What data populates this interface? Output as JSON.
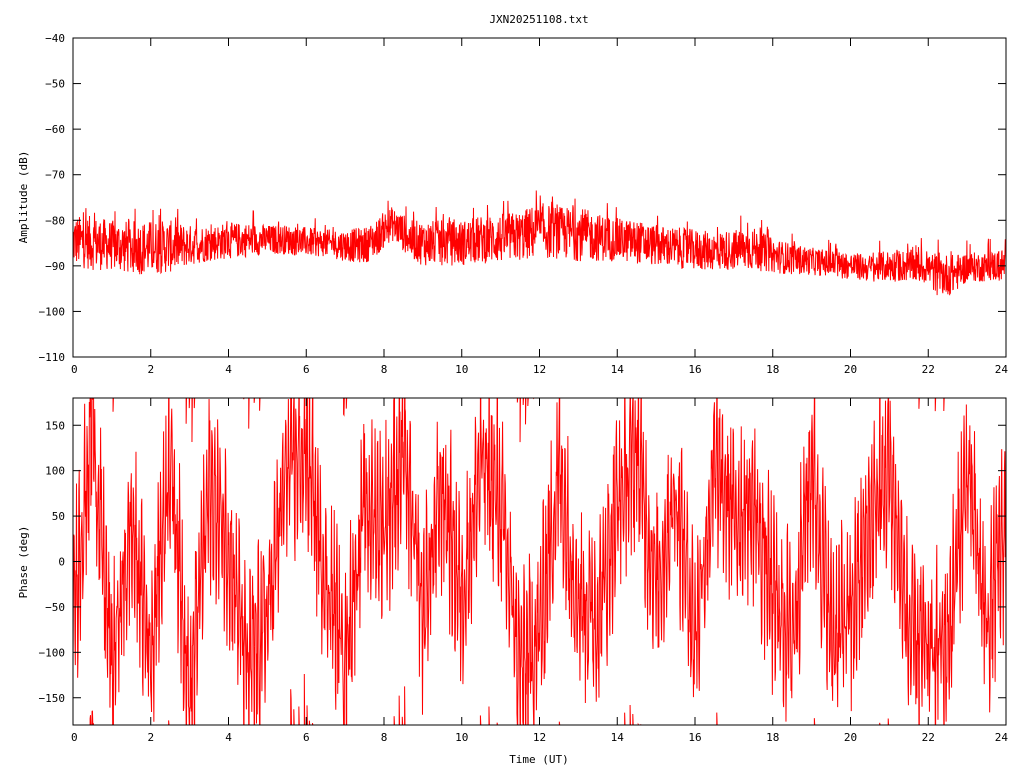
{
  "chart_data": [
    {
      "type": "line",
      "title": "JXN20251108.txt",
      "ylabel": "Amplitude (dB)",
      "xlabel": "",
      "xlim": [
        0,
        24
      ],
      "ylim": [
        -110,
        -40
      ],
      "x_ticks": [
        0,
        2,
        4,
        6,
        8,
        10,
        12,
        14,
        16,
        18,
        20,
        22,
        24
      ],
      "y_ticks": [
        -110,
        -100,
        -90,
        -80,
        -70,
        -60,
        -50,
        -40
      ],
      "grid": false,
      "color": "#ff0000",
      "series": [
        {
          "envelope_x": [
            0,
            0.5,
            1,
            1.5,
            2,
            2.5,
            3,
            3.5,
            4,
            4.5,
            5,
            5.5,
            6,
            6.5,
            7,
            7.5,
            7.8,
            8.0,
            8.2,
            8.4,
            8.7,
            9,
            9.5,
            10,
            10.5,
            11,
            11.5,
            12,
            12.5,
            13,
            13.5,
            14,
            14.5,
            15,
            15.5,
            16,
            16.5,
            17,
            17.5,
            18,
            18.5,
            19,
            19.5,
            20,
            20.5,
            21,
            21.5,
            22,
            22.2,
            22.6,
            23,
            23.5,
            24
          ],
          "envelope_upper": [
            -79,
            -79,
            -80,
            -80,
            -80,
            -80,
            -81,
            -81,
            -80.5,
            -80.5,
            -81,
            -81,
            -81.5,
            -82,
            -82,
            -81.5,
            -80,
            -78,
            -77,
            -78,
            -80,
            -80,
            -80,
            -80,
            -79,
            -78.5,
            -78,
            -76,
            -77,
            -77,
            -78.5,
            -79.5,
            -80,
            -81,
            -81.5,
            -82,
            -82.5,
            -82,
            -81.5,
            -84,
            -85,
            -86,
            -86.5,
            -87,
            -87.5,
            -86.5,
            -86.5,
            -87,
            -87,
            -87.5,
            -87,
            -87,
            -86
          ],
          "envelope_lower": [
            -90,
            -91,
            -91,
            -92,
            -92,
            -91.5,
            -90,
            -89,
            -88.5,
            -88,
            -87.5,
            -87.5,
            -88,
            -88,
            -89,
            -89.5,
            -88,
            -86,
            -84.5,
            -86,
            -88.5,
            -90,
            -90,
            -90,
            -89.5,
            -89.5,
            -89,
            -88.5,
            -88.5,
            -89,
            -89,
            -89,
            -89.5,
            -90,
            -90.5,
            -91,
            -91,
            -91,
            -91,
            -91.5,
            -92,
            -92,
            -92.5,
            -93,
            -93.5,
            -93.5,
            -93.5,
            -94,
            -96.5,
            -96.5,
            -93.5,
            -93.5,
            -93.5
          ]
        }
      ]
    },
    {
      "type": "line",
      "title": "",
      "ylabel": "Phase (deg)",
      "xlabel": "Time (UT)",
      "xlim": [
        0,
        24
      ],
      "ylim": [
        -180,
        180
      ],
      "x_ticks": [
        0,
        2,
        4,
        6,
        8,
        10,
        12,
        14,
        16,
        18,
        20,
        22,
        24
      ],
      "y_ticks": [
        -150,
        -100,
        -50,
        0,
        50,
        100,
        150
      ],
      "grid": false,
      "color": "#ff0000",
      "series": [
        {
          "wraps": true,
          "x": [
            0,
            0.5,
            1,
            1.5,
            2,
            2.5,
            3,
            3.5,
            4,
            4.5,
            5,
            5.5,
            6,
            6.5,
            7,
            7.5,
            8,
            8.5,
            9,
            9.5,
            10,
            10.5,
            11,
            11.5,
            12,
            12.5,
            13,
            13.5,
            14,
            14.5,
            15,
            15.5,
            16,
            16.5,
            17,
            17.5,
            18,
            18.5,
            19,
            19.5,
            20,
            20.5,
            21,
            21.5,
            22,
            22.5,
            23,
            23.5,
            24
          ],
          "value": [
            -60,
            150,
            -120,
            40,
            -100,
            120,
            -150,
            80,
            20,
            -120,
            -60,
            100,
            120,
            -20,
            -100,
            60,
            40,
            120,
            -60,
            80,
            -40,
            110,
            60,
            -120,
            -80,
            100,
            -40,
            -60,
            60,
            120,
            -30,
            80,
            -80,
            100,
            50,
            60,
            -40,
            -80,
            110,
            -80,
            -60,
            40,
            100,
            -80,
            -100,
            -90,
            100,
            -70,
            40
          ]
        }
      ]
    }
  ]
}
